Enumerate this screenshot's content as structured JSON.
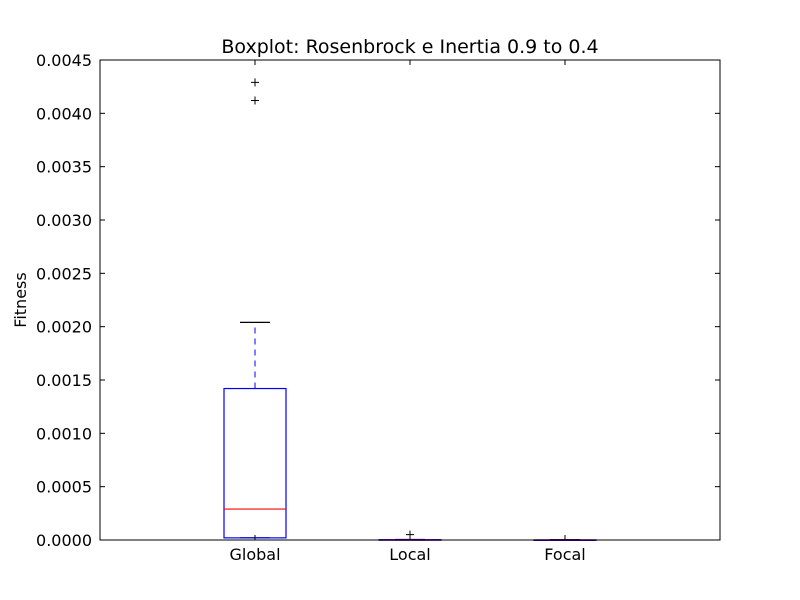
{
  "chart_data": {
    "type": "boxplot",
    "title": "Boxplot: Rosenbrock e Inertia 0.9 to 0.4",
    "xlabel": "",
    "ylabel": "Fitness",
    "ylim": [
      0,
      0.0045
    ],
    "yticks": [
      0,
      0.0005,
      0.001,
      0.0015,
      0.002,
      0.0025,
      0.003,
      0.0035,
      0.004,
      0.0045
    ],
    "ytick_labels": [
      "0.0000",
      "0.0005",
      "0.0010",
      "0.0015",
      "0.0020",
      "0.0025",
      "0.0030",
      "0.0035",
      "0.0040",
      "0.0045"
    ],
    "grid": false,
    "categories": [
      "Global",
      "Local",
      "Focal"
    ],
    "boxes": [
      {
        "category": "Global",
        "whisker_low": 2e-05,
        "q1": 2e-05,
        "median": 0.00029,
        "q3": 0.00142,
        "whisker_high": 0.00204,
        "outliers": [
          0.00412,
          0.00429
        ]
      },
      {
        "category": "Local",
        "whisker_low": 0.0,
        "q1": 0.0,
        "median": 0.0,
        "q3": 3e-06,
        "whisker_high": 5e-06,
        "outliers": [
          5e-05
        ]
      },
      {
        "category": "Focal",
        "whisker_low": 0.0,
        "q1": 0.0,
        "median": 0.0,
        "q3": 1e-06,
        "whisker_high": 2e-06,
        "outliers": []
      }
    ],
    "colors": {
      "box": "#0000ff",
      "median": "#ff0000",
      "whisker": "#0000ff",
      "cap": "#000000",
      "outlier": "#000000"
    }
  }
}
